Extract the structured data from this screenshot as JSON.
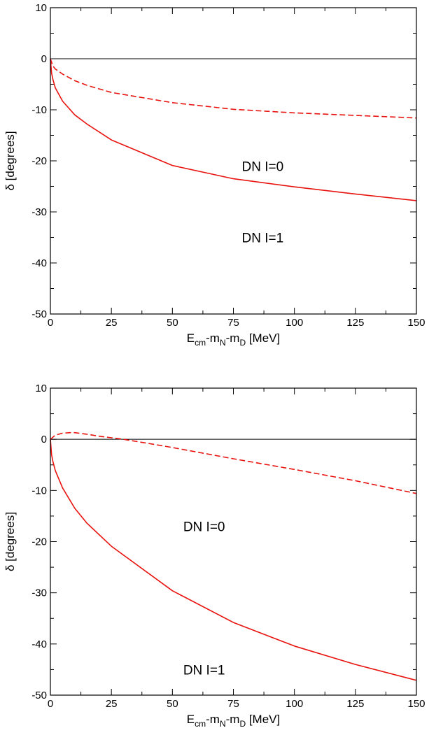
{
  "chart_data": [
    {
      "type": "line",
      "title": "",
      "xlabel": {
        "main": "E",
        "sub1": "cm",
        "mid1": "-m",
        "sub2": "N",
        "mid2": "-m",
        "sub3": "D",
        "tail": " [MeV]"
      },
      "ylabel": {
        "symbol": "δ",
        "rest": " [degrees]"
      },
      "xlim": [
        0,
        150
      ],
      "ylim": [
        -50,
        10
      ],
      "xticks": [
        0,
        25,
        50,
        75,
        100,
        125,
        150
      ],
      "xtick_labels": [
        "0",
        "25",
        "50",
        "75",
        "100",
        "125",
        "150"
      ],
      "yticks": [
        10,
        0,
        -10,
        -20,
        -30,
        -40,
        -50
      ],
      "ytick_labels": [
        "10",
        "0",
        "-10",
        "-20",
        "-30",
        "-40",
        "-50"
      ],
      "grid": false,
      "zero_line": true,
      "annotations": [
        {
          "text": "DN  I=0",
          "x": 87,
          "y": -21
        },
        {
          "text": "DN  I=1",
          "x": 87,
          "y": -35
        }
      ],
      "series": [
        {
          "style": "dashed",
          "color": "#e8130f",
          "x": [
            0,
            1,
            2,
            5,
            10,
            15,
            25,
            50,
            75,
            100,
            125,
            150
          ],
          "y": [
            0,
            -1.4,
            -2.0,
            -3.0,
            -4.3,
            -5.2,
            -6.6,
            -8.6,
            -9.9,
            -10.6,
            -11.1,
            -11.6
          ]
        },
        {
          "style": "solid",
          "color": "#e8130f",
          "x": [
            0,
            0.5,
            1,
            2,
            5,
            10,
            15,
            25,
            50,
            75,
            100,
            125,
            150
          ],
          "y": [
            0,
            -2.8,
            -4.0,
            -5.7,
            -8.3,
            -11.0,
            -12.8,
            -15.9,
            -20.9,
            -23.5,
            -25.1,
            -26.5,
            -27.8
          ]
        }
      ]
    },
    {
      "type": "line",
      "title": "",
      "xlabel": {
        "main": "E",
        "sub1": "cm",
        "mid1": "-m",
        "sub2": "N",
        "mid2": "-m",
        "sub3": "D",
        "tail": " [MeV]"
      },
      "ylabel": {
        "symbol": "δ",
        "rest": " [degrees]"
      },
      "xlim": [
        0,
        150
      ],
      "ylim": [
        -50,
        10
      ],
      "xticks": [
        0,
        25,
        50,
        75,
        100,
        125,
        150
      ],
      "xtick_labels": [
        "0",
        "25",
        "50",
        "75",
        "100",
        "125",
        "150"
      ],
      "yticks": [
        10,
        0,
        -10,
        -20,
        -30,
        -40,
        -50
      ],
      "ytick_labels": [
        "10",
        "0",
        "-10",
        "-20",
        "-30",
        "-40",
        "-50"
      ],
      "grid": false,
      "zero_line": true,
      "annotations": [
        {
          "text": "DN  I=0",
          "x": 63,
          "y": -17
        },
        {
          "text": "DN  I=1",
          "x": 63,
          "y": -45
        }
      ],
      "series": [
        {
          "style": "dashed",
          "color": "#e8130f",
          "x": [
            0,
            2,
            5,
            8,
            10,
            15,
            20,
            25,
            30,
            40,
            50,
            75,
            100,
            125,
            150
          ],
          "y": [
            0,
            0.8,
            1.2,
            1.3,
            1.3,
            1.0,
            0.6,
            0.3,
            0.0,
            -0.8,
            -1.6,
            -3.8,
            -5.9,
            -8.1,
            -10.6
          ]
        },
        {
          "style": "solid",
          "color": "#e8130f",
          "x": [
            0,
            0.5,
            1,
            2,
            5,
            10,
            15,
            25,
            50,
            75,
            100,
            125,
            150
          ],
          "y": [
            0,
            -3.0,
            -4.3,
            -6.1,
            -9.5,
            -13.5,
            -16.4,
            -20.9,
            -29.6,
            -35.8,
            -40.4,
            -44.0,
            -47.1
          ]
        }
      ]
    }
  ]
}
